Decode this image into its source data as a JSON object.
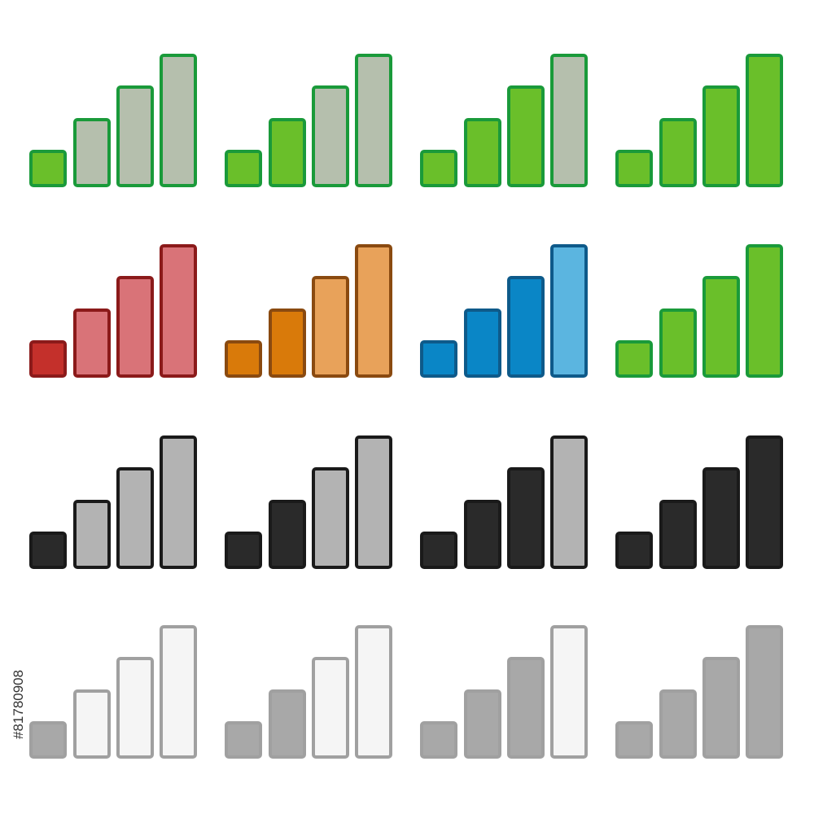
{
  "stock_id": "#81780908"
}
